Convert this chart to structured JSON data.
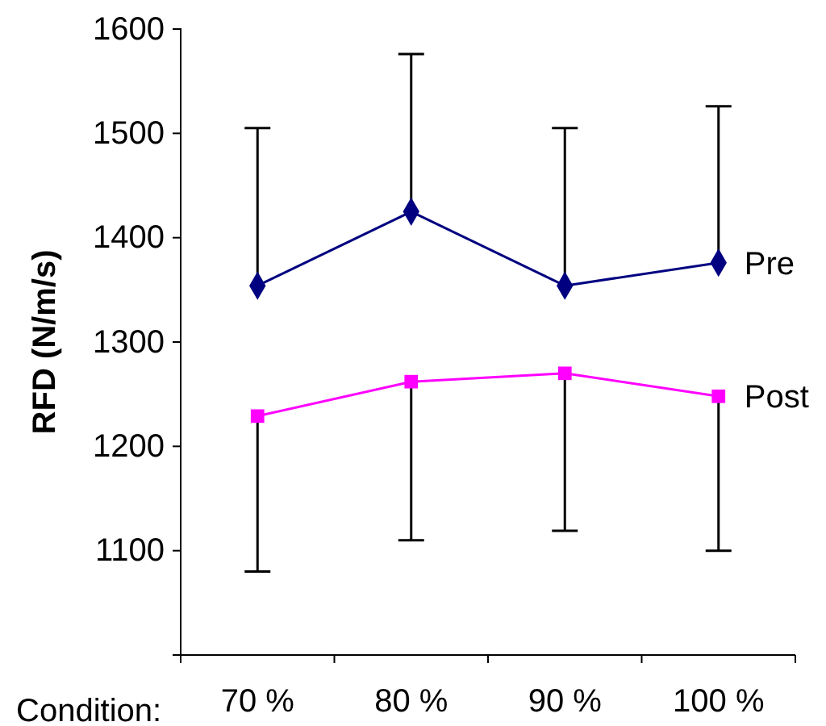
{
  "chart_data": {
    "type": "line",
    "xlabel": "Condition:",
    "ylabel": "RFD (N/m/s)",
    "categories": [
      "70 %",
      "80 %",
      "90 %",
      "100 %"
    ],
    "series": [
      {
        "name": "Pre",
        "color": "#000080",
        "marker": "diamond",
        "values": [
          1354,
          1425,
          1354,
          1376
        ],
        "errors": [
          [
            1354,
            1505
          ],
          [
            1425,
            1576
          ],
          [
            1354,
            1505
          ],
          [
            1376,
            1526
          ]
        ]
      },
      {
        "name": "Post",
        "color": "#ff00ff",
        "marker": "square",
        "values": [
          1229,
          1262,
          1270,
          1248
        ],
        "errors": [
          [
            1080,
            1229
          ],
          [
            1110,
            1262
          ],
          [
            1119,
            1270
          ],
          [
            1100,
            1248
          ]
        ]
      }
    ],
    "ylim": [
      1000,
      1600
    ],
    "yticks": [
      1100,
      1200,
      1300,
      1400,
      1500,
      1600
    ],
    "grid": false,
    "legend": false
  }
}
